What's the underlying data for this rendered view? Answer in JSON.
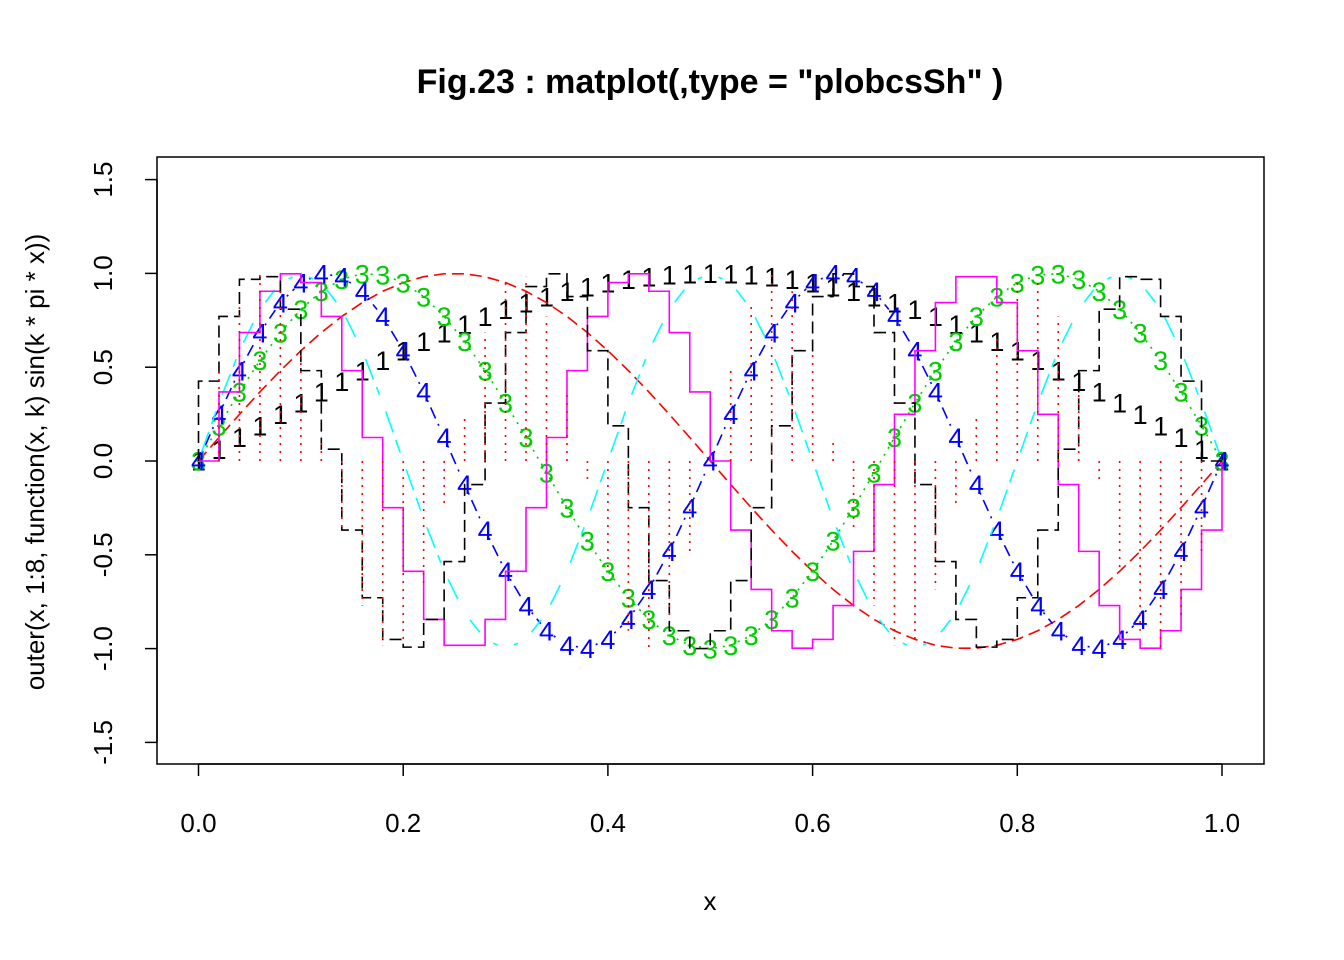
{
  "chart_data": {
    "type": "line",
    "title": "Fig.23 : matplot(,type = \"plobcsSh\" )",
    "xlabel": "x",
    "ylabel": "outer(x, 1:8, function(x, k) sin(k * pi * x))",
    "xlim": [
      0,
      1
    ],
    "ylim": [
      -1.6,
      1.6
    ],
    "x_ticks": [
      "0.0",
      "0.2",
      "0.4",
      "0.6",
      "0.8",
      "1.0"
    ],
    "y_ticks": [
      "-1.5",
      "-1.0",
      "-0.5",
      "0.0",
      "0.5",
      "1.0",
      "1.5"
    ],
    "grid": false,
    "legend": "none",
    "x": {
      "from": 0,
      "to": 1,
      "by": 0.02
    },
    "function": "sin(k * pi * x)",
    "series": [
      {
        "k": 1,
        "type": "p",
        "symbol": "1",
        "color": "#000000"
      },
      {
        "k": 2,
        "type": "l",
        "color": "#ff0000",
        "lty": "dashed"
      },
      {
        "k": 3,
        "type": "o",
        "symbol": "3",
        "color": "#00cd00",
        "lty": "dotted"
      },
      {
        "k": 4,
        "type": "b",
        "symbol": "4",
        "color": "#0000ff",
        "lty": "dotdash"
      },
      {
        "k": 5,
        "type": "c",
        "color": "#00ffff",
        "lty": "longdash"
      },
      {
        "k": 6,
        "type": "s",
        "color": "#ff00ff",
        "lty": "solid"
      },
      {
        "k": 7,
        "type": "S",
        "color": "#000000",
        "lty": "dashed"
      },
      {
        "k": 8,
        "type": "h",
        "color": "#ff0000",
        "lty": "dotted"
      }
    ]
  }
}
